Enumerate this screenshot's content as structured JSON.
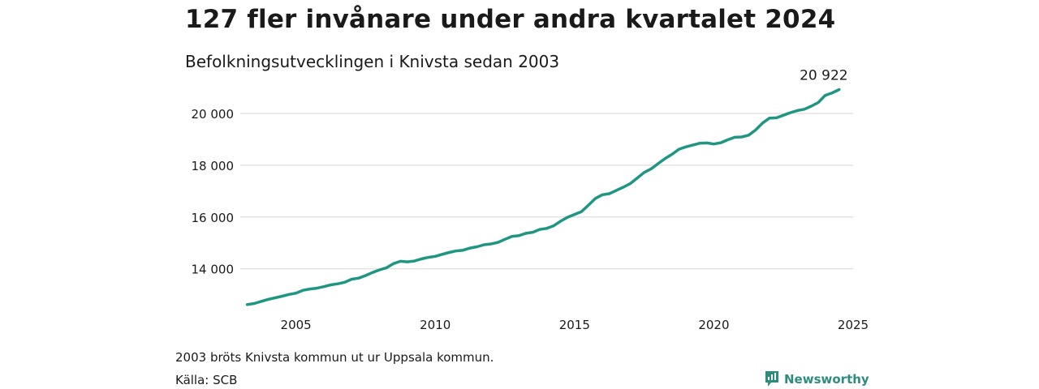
{
  "title": "127 fler invånare under andra kvartalet 2024",
  "subtitle": "Befolkningsutvecklingen i Knivsta sedan 2003",
  "note": "2003 bröts Knivsta kommun ut ur Uppsala kommun.",
  "source": "Källa: SCB",
  "brand": {
    "name": "Newsworthy",
    "icon": "newsworthy-logo-icon",
    "color": "#2e8c7c"
  },
  "chart_data": {
    "type": "line",
    "title": "127 fler invånare under andra kvartalet 2024",
    "subtitle": "Befolkningsutvecklingen i Knivsta sedan 2003",
    "xlabel": "",
    "ylabel": "",
    "xlim": [
      2003.0,
      2025.0
    ],
    "ylim": [
      12300,
      21000
    ],
    "x_ticks": [
      2005,
      2010,
      2015,
      2020,
      2025
    ],
    "y_ticks": [
      14000,
      16000,
      18000,
      20000
    ],
    "y_tick_labels": [
      "14 000",
      "16 000",
      "18 000",
      "20 000"
    ],
    "grid": true,
    "line_color": "#1f9682",
    "end_label": "20 922",
    "series": [
      {
        "name": "",
        "x": [
          2003.25,
          2003.5,
          2003.75,
          2004.0,
          2004.25,
          2004.5,
          2004.75,
          2005.0,
          2005.25,
          2005.5,
          2005.75,
          2006.0,
          2006.25,
          2006.5,
          2006.75,
          2007.0,
          2007.25,
          2007.5,
          2007.75,
          2008.0,
          2008.25,
          2008.5,
          2008.75,
          2009.0,
          2009.25,
          2009.5,
          2009.75,
          2010.0,
          2010.25,
          2010.5,
          2010.75,
          2011.0,
          2011.25,
          2011.5,
          2011.75,
          2012.0,
          2012.25,
          2012.5,
          2012.75,
          2013.0,
          2013.25,
          2013.5,
          2013.75,
          2014.0,
          2014.25,
          2014.5,
          2014.75,
          2015.0,
          2015.25,
          2015.5,
          2015.75,
          2016.0,
          2016.25,
          2016.5,
          2016.75,
          2017.0,
          2017.25,
          2017.5,
          2017.75,
          2018.0,
          2018.25,
          2018.5,
          2018.75,
          2019.0,
          2019.25,
          2019.5,
          2019.75,
          2020.0,
          2020.25,
          2020.5,
          2020.75,
          2021.0,
          2021.25,
          2021.5,
          2021.75,
          2022.0,
          2022.25,
          2022.5,
          2022.75,
          2023.0,
          2023.25,
          2023.5,
          2023.75,
          2024.0,
          2024.25,
          2024.5
        ],
        "y": [
          12620,
          12660,
          12740,
          12820,
          12880,
          12940,
          13010,
          13060,
          13170,
          13220,
          13250,
          13310,
          13380,
          13420,
          13480,
          13600,
          13640,
          13740,
          13860,
          13960,
          14040,
          14200,
          14290,
          14270,
          14300,
          14380,
          14440,
          14480,
          14560,
          14630,
          14690,
          14720,
          14800,
          14850,
          14930,
          14960,
          15020,
          15140,
          15250,
          15280,
          15370,
          15410,
          15520,
          15560,
          15660,
          15840,
          15990,
          16100,
          16210,
          16460,
          16720,
          16860,
          16900,
          17030,
          17150,
          17290,
          17500,
          17720,
          17860,
          18060,
          18260,
          18420,
          18620,
          18710,
          18780,
          18850,
          18860,
          18820,
          18870,
          18980,
          19080,
          19090,
          19160,
          19360,
          19630,
          19820,
          19830,
          19930,
          20030,
          20110,
          20160,
          20280,
          20420,
          20700,
          20795,
          20922
        ]
      }
    ]
  }
}
